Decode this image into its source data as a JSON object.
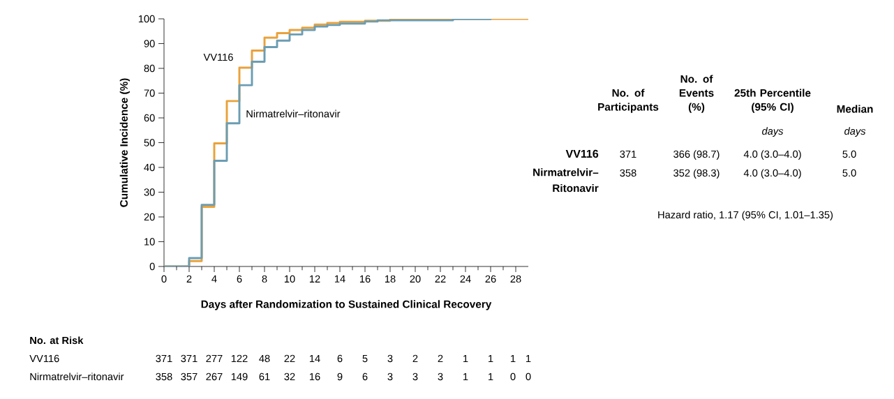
{
  "chart_data": {
    "type": "step",
    "xlabel": "Days after Randomization to Sustained Clinical Recovery",
    "ylabel": "Cumulative Incidence (%)",
    "xlim": [
      0,
      29
    ],
    "ylim": [
      0,
      100
    ],
    "xticks": [
      0,
      2,
      4,
      6,
      8,
      10,
      12,
      14,
      16,
      18,
      20,
      22,
      24,
      26,
      28
    ],
    "yticks": [
      0,
      10,
      20,
      30,
      40,
      50,
      60,
      70,
      80,
      90,
      100
    ],
    "series": [
      {
        "name": "VV116",
        "color": "#e9a23b",
        "x": [
          0,
          2,
          3,
          4,
          5,
          6,
          7,
          8,
          9,
          10,
          11,
          12,
          13,
          14,
          16,
          18,
          22,
          29
        ],
        "values": [
          0,
          2.2,
          24.1,
          49.7,
          66.8,
          80.3,
          87.2,
          92.4,
          94.2,
          95.5,
          96.4,
          97.7,
          98.3,
          98.8,
          99.2,
          99.7,
          100,
          100
        ]
      },
      {
        "name": "Nirmatrelvir–ritonavir",
        "color": "#6b9db3",
        "x": [
          0,
          2,
          3,
          4,
          5,
          6,
          7,
          8,
          9,
          10,
          11,
          12,
          13,
          14,
          16,
          17,
          23,
          26
        ],
        "values": [
          0,
          3.4,
          24.9,
          42.7,
          57.8,
          73.2,
          82.7,
          88.6,
          91.2,
          93.7,
          95.5,
          96.9,
          97.5,
          98.1,
          98.9,
          99.4,
          99.9,
          100
        ]
      }
    ],
    "annotations": [
      "No. at Risk",
      "VV116",
      "371",
      "371",
      "277",
      "122",
      "48",
      "22",
      "14",
      "6",
      "5",
      "3",
      "2",
      "2",
      "1",
      "1",
      "1",
      "1",
      "Nirmatrelvir–ritonavir",
      "358",
      "357",
      "267",
      "149",
      "61",
      "32",
      "16",
      "9",
      "6",
      "3",
      "3",
      "3",
      "1",
      "1",
      "0",
      "0",
      "No. of Participants",
      "No. of Events (%)",
      "25th Percentile (95% CI)",
      "Median",
      "days",
      "days",
      "VV116",
      "371",
      "366 (98.7)",
      "4.0 (3.0–4.0)",
      "5.0",
      "Nirmatrelvir–Ritonavir",
      "358",
      "352 (98.3)",
      "4.0 (3.0–4.0)",
      "5.0",
      "Hazard ratio, 1.17 (95% CI, 1.01–1.35)"
    ]
  }
}
